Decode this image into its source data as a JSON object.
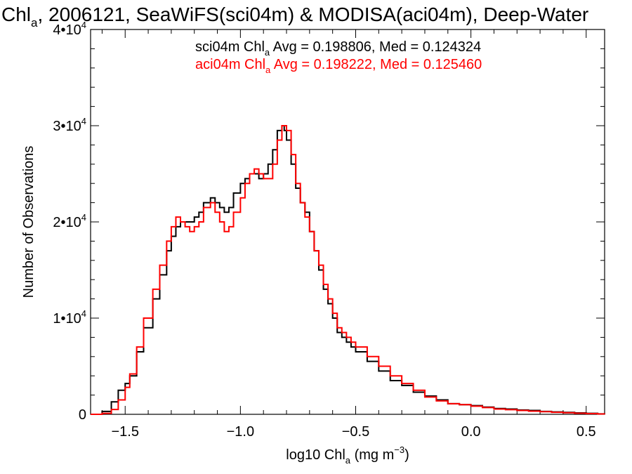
{
  "chart_data": {
    "type": "line",
    "title": "Chl",
    "title_sub": "a",
    "title_rest": ", 2006121, SeaWiFS(sci04m) & MODISA(aci04m), Deep-Water",
    "xlabel_pre": "log10 Chl",
    "xlabel_sub": "a",
    "xlabel_unit": " (mg m",
    "xlabel_sup": "−3",
    "xlabel_end": ")",
    "ylabel": "Number of Observations",
    "xlim": [
      -1.65,
      0.58
    ],
    "ylim": [
      0,
      40000
    ],
    "x_ticks": [
      {
        "value": -1.5,
        "label": "−1.5"
      },
      {
        "value": -1.0,
        "label": "−1.0"
      },
      {
        "value": -0.5,
        "label": "−0.5"
      },
      {
        "value": 0.0,
        "label": "0.0"
      },
      {
        "value": 0.5,
        "label": "0.5"
      }
    ],
    "y_ticks": [
      {
        "value": 0,
        "label": "0",
        "exp": ""
      },
      {
        "value": 10000,
        "label": "1•10",
        "exp": "4"
      },
      {
        "value": 20000,
        "label": "2•10",
        "exp": "4"
      },
      {
        "value": 30000,
        "label": "3•10",
        "exp": "4"
      },
      {
        "value": 40000,
        "label": "4•10",
        "exp": "4"
      }
    ],
    "x_minor_step": 0.1,
    "y_minor_step": 2000,
    "legend": [
      {
        "pre": "sci04m Chl",
        "sub": "a",
        "post": " Avg = 0.198806, Med = 0.124324",
        "color": "#000000"
      },
      {
        "pre": "aci04m Chl",
        "sub": "a",
        "post": " Avg = 0.198222, Med = 0.125460",
        "color": "#ff0000"
      }
    ],
    "series": [
      {
        "name": "sci04m",
        "color": "#000000",
        "x": [
          -1.65,
          -1.6,
          -1.56,
          -1.53,
          -1.5,
          -1.48,
          -1.45,
          -1.42,
          -1.38,
          -1.35,
          -1.32,
          -1.3,
          -1.28,
          -1.26,
          -1.24,
          -1.22,
          -1.2,
          -1.18,
          -1.16,
          -1.13,
          -1.11,
          -1.09,
          -1.07,
          -1.05,
          -1.03,
          -1.0,
          -0.98,
          -0.96,
          -0.94,
          -0.92,
          -0.9,
          -0.88,
          -0.86,
          -0.84,
          -0.82,
          -0.81,
          -0.8,
          -0.78,
          -0.76,
          -0.74,
          -0.72,
          -0.7,
          -0.68,
          -0.66,
          -0.64,
          -0.62,
          -0.6,
          -0.58,
          -0.56,
          -0.54,
          -0.52,
          -0.5,
          -0.45,
          -0.4,
          -0.35,
          -0.3,
          -0.25,
          -0.2,
          -0.15,
          -0.1,
          -0.05,
          0.0,
          0.05,
          0.1,
          0.15,
          0.2,
          0.25,
          0.3,
          0.35,
          0.4,
          0.45,
          0.5,
          0.55,
          0.58
        ],
        "y": [
          0,
          300,
          1300,
          2500,
          3200,
          4000,
          6500,
          9000,
          12000,
          14500,
          17000,
          18500,
          19500,
          20000,
          20000,
          20000,
          20500,
          21000,
          22000,
          22500,
          22000,
          21500,
          21000,
          21500,
          23000,
          24000,
          24500,
          25000,
          25000,
          24500,
          25000,
          26000,
          27500,
          29500,
          30000,
          29500,
          28500,
          26000,
          23500,
          22000,
          21000,
          19000,
          17000,
          15000,
          13000,
          11500,
          10000,
          8500,
          8000,
          7500,
          7000,
          6500,
          5500,
          4500,
          3500,
          3000,
          2300,
          1900,
          1500,
          1100,
          1000,
          900,
          750,
          600,
          550,
          450,
          400,
          300,
          250,
          200,
          150,
          100,
          50,
          30
        ]
      },
      {
        "name": "aci04m",
        "color": "#ff0000",
        "x": [
          -1.65,
          -1.6,
          -1.56,
          -1.53,
          -1.5,
          -1.48,
          -1.45,
          -1.42,
          -1.38,
          -1.35,
          -1.32,
          -1.3,
          -1.28,
          -1.26,
          -1.24,
          -1.22,
          -1.2,
          -1.18,
          -1.16,
          -1.13,
          -1.11,
          -1.09,
          -1.07,
          -1.05,
          -1.03,
          -1.0,
          -0.98,
          -0.96,
          -0.94,
          -0.92,
          -0.9,
          -0.88,
          -0.86,
          -0.84,
          -0.82,
          -0.81,
          -0.8,
          -0.78,
          -0.76,
          -0.74,
          -0.72,
          -0.7,
          -0.68,
          -0.66,
          -0.64,
          -0.62,
          -0.6,
          -0.58,
          -0.56,
          -0.54,
          -0.52,
          -0.5,
          -0.45,
          -0.4,
          -0.35,
          -0.3,
          -0.25,
          -0.2,
          -0.15,
          -0.1,
          -0.05,
          0.0,
          0.05,
          0.1,
          0.15,
          0.2,
          0.25,
          0.3,
          0.35,
          0.4,
          0.45,
          0.5,
          0.55,
          0.58
        ],
        "y": [
          0,
          100,
          500,
          1500,
          2800,
          4200,
          7000,
          10000,
          13000,
          15500,
          18000,
          19500,
          20500,
          20000,
          19500,
          19000,
          19500,
          20000,
          21500,
          22000,
          21000,
          20000,
          19000,
          19500,
          21000,
          22500,
          24000,
          25000,
          25500,
          25000,
          24500,
          24500,
          26000,
          28500,
          30000,
          30000,
          29500,
          27000,
          24000,
          22000,
          20500,
          19000,
          17000,
          15500,
          13500,
          12000,
          10500,
          9000,
          8500,
          8000,
          7500,
          7000,
          6000,
          5000,
          4000,
          3200,
          2500,
          1800,
          1400,
          1100,
          1000,
          850,
          700,
          550,
          480,
          400,
          330,
          270,
          210,
          160,
          110,
          70,
          40,
          20
        ]
      }
    ]
  }
}
